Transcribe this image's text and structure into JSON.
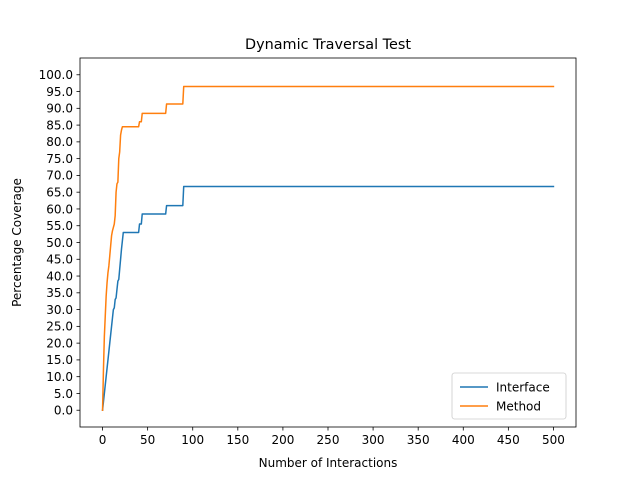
{
  "chart_data": {
    "type": "line",
    "title": "Dynamic Traversal Test",
    "xlabel": "Number of Interactions",
    "ylabel": "Percentage Coverage",
    "xlim": [
      -25,
      525
    ],
    "ylim": [
      -5,
      105
    ],
    "xticks": [
      0,
      50,
      100,
      150,
      200,
      250,
      300,
      350,
      400,
      450,
      500
    ],
    "xtick_labels": [
      "0",
      "50",
      "100",
      "150",
      "200",
      "250",
      "300",
      "350",
      "400",
      "450",
      "500"
    ],
    "yticks": [
      0,
      5,
      10,
      15,
      20,
      25,
      30,
      35,
      40,
      45,
      50,
      55,
      60,
      65,
      70,
      75,
      80,
      85,
      90,
      95,
      100
    ],
    "ytick_labels": [
      "0.0",
      "5.0",
      "10.0",
      "15.0",
      "20.0",
      "25.0",
      "30.0",
      "35.0",
      "40.0",
      "45.0",
      "50.0",
      "55.0",
      "60.0",
      "65.0",
      "70.0",
      "75.0",
      "80.0",
      "85.0",
      "90.0",
      "95.0",
      "100.0"
    ],
    "grid": false,
    "legend": "lower-right",
    "series": [
      {
        "name": "Interface",
        "color": "#1f77b4",
        "x": [
          0,
          1,
          2,
          3,
          4,
          5,
          6,
          7,
          8,
          9,
          10,
          11,
          12,
          13,
          14,
          15,
          16,
          17,
          18,
          19,
          20,
          21,
          22,
          23,
          40,
          41,
          43,
          44,
          70,
          71,
          89,
          90,
          500
        ],
        "y": [
          0,
          2.5,
          5,
          7.5,
          10,
          12.5,
          15,
          17.5,
          20,
          22.5,
          25,
          27.5,
          30,
          30.5,
          33,
          33.5,
          36,
          38.5,
          39,
          42,
          45,
          48,
          50.5,
          53,
          53,
          55.5,
          55.5,
          58.5,
          58.5,
          61,
          61,
          66.7,
          66.7
        ]
      },
      {
        "name": "Method",
        "color": "#ff7f0e",
        "x": [
          0,
          1,
          2,
          3,
          4,
          5,
          6,
          7,
          8,
          9,
          10,
          11,
          12,
          13,
          14,
          15,
          16,
          17,
          18,
          19,
          20,
          21,
          22,
          23,
          24,
          40,
          41,
          43,
          44,
          70,
          71,
          89,
          90,
          500
        ],
        "y": [
          0,
          12,
          22,
          28,
          34,
          38,
          41,
          43,
          46,
          49,
          52,
          53.5,
          54.5,
          55.5,
          58,
          65,
          67.5,
          68,
          75,
          77,
          82,
          83.5,
          84.5,
          84.5,
          84.5,
          84.5,
          86,
          86,
          88.5,
          88.5,
          91.3,
          91.3,
          96.5,
          96.5
        ]
      }
    ]
  }
}
